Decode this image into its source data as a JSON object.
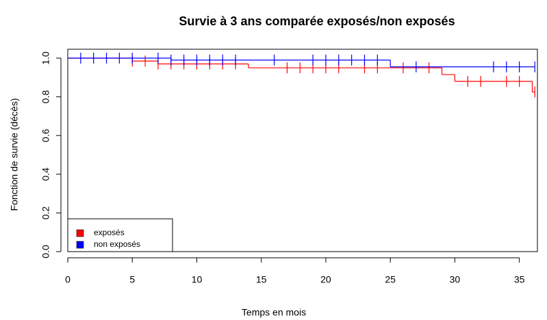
{
  "chart_data": {
    "type": "survival",
    "title": "Survie à 3 ans comparée exposés/non exposés",
    "x_label": "Temps en mois",
    "y_label": "Fonction de survie (décès)",
    "xlim": [
      0,
      36.4
    ],
    "ylim": [
      0,
      1.046
    ],
    "xticks": [
      0,
      5,
      10,
      15,
      20,
      25,
      30,
      35
    ],
    "yticks": [
      {
        "value": 0,
        "label": "0.0"
      },
      {
        "value": 0.2,
        "label": "0.2"
      },
      {
        "value": 0.4,
        "label": "0.4"
      },
      {
        "value": 0.6,
        "label": "0.6"
      },
      {
        "value": 0.8,
        "label": "0.8"
      },
      {
        "value": 1,
        "label": "1.0"
      }
    ],
    "legend": "bottom-left",
    "series": [
      {
        "name": "exposés",
        "color": "#ff0000",
        "x": [
          0,
          5,
          7,
          14,
          29,
          30,
          36
        ],
        "values": [
          1,
          0.985,
          0.97,
          0.95,
          0.915,
          0.88,
          0.825
        ],
        "censor_x": [
          5,
          6,
          7,
          8,
          9,
          10,
          11,
          12,
          13,
          17,
          18,
          19,
          20,
          21,
          23,
          24,
          26,
          28,
          31,
          32,
          34,
          35,
          36.2
        ],
        "censor_values": [
          0.985,
          0.985,
          0.97,
          0.97,
          0.97,
          0.97,
          0.97,
          0.97,
          0.97,
          0.95,
          0.95,
          0.95,
          0.95,
          0.95,
          0.95,
          0.95,
          0.95,
          0.95,
          0.88,
          0.88,
          0.88,
          0.88,
          0.825
        ]
      },
      {
        "name": "non exposés",
        "color": "#0000ff",
        "x": [
          0,
          8,
          25
        ],
        "values": [
          1,
          0.99,
          0.955
        ],
        "censor_x": [
          1,
          2,
          3,
          4,
          5,
          7,
          8,
          9,
          10,
          11,
          12,
          13,
          16,
          19,
          20,
          21,
          22,
          23,
          24,
          27,
          33,
          34,
          35,
          36.2
        ],
        "censor_values": [
          1,
          1,
          1,
          1,
          1,
          1,
          0.99,
          0.99,
          0.99,
          0.99,
          0.99,
          0.99,
          0.99,
          0.99,
          0.99,
          0.99,
          0.99,
          0.99,
          0.99,
          0.955,
          0.955,
          0.955,
          0.955,
          0.955
        ]
      }
    ]
  }
}
